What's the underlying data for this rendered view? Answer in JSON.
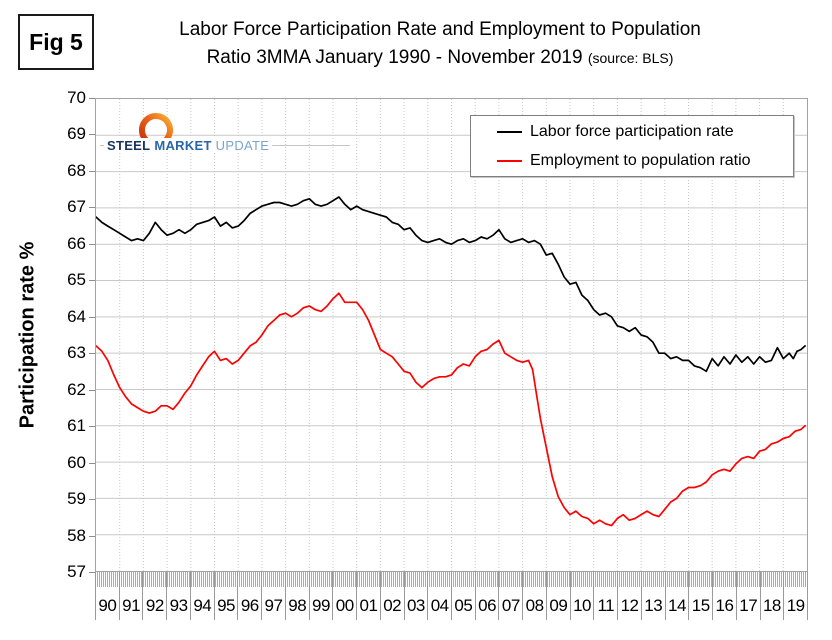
{
  "figure": {
    "label": "Fig 5"
  },
  "title": {
    "line1": "Labor Force Participation Rate and Employment to Population",
    "line2": "Ratio 3MMA January 1990 - November 2019",
    "source_note": "(source: BLS)"
  },
  "logo": {
    "word1": "STEEL",
    "word2": "MARKET",
    "word3": "UPDATE"
  },
  "colors": {
    "lfpr_line": "#000000",
    "epr_line": "#FF0000",
    "gridline": "#c9c9c9",
    "plot_border": "#a3a3a3",
    "axis_tick": "#9a9a9a",
    "logo_navy": "#16365f",
    "logo_blue": "#2a66a8",
    "logo_light_blue": "#7aa3d4",
    "logo_orange_dark": "#d94a0a",
    "logo_orange_light": "#f9b233"
  },
  "chart_data": {
    "type": "line",
    "title": "Labor Force Participation Rate and Employment to Population Ratio 3MMA January 1990 - November 2019",
    "source": "BLS",
    "xlabel": "",
    "ylabel": "Participation rate %",
    "ylim": [
      57,
      70
    ],
    "x_domain_years": [
      1990,
      2020
    ],
    "x_end_data": 2019.92,
    "y_ticks": [
      70,
      69,
      68,
      67,
      66,
      65,
      64,
      63,
      62,
      61,
      60,
      59,
      58,
      57
    ],
    "x_tick_labels": [
      "90",
      "91",
      "92",
      "93",
      "94",
      "95",
      "96",
      "97",
      "98",
      "99",
      "00",
      "01",
      "02",
      "03",
      "04",
      "05",
      "06",
      "07",
      "08",
      "09",
      "10",
      "11",
      "12",
      "13",
      "14",
      "15",
      "16",
      "17",
      "18",
      "19"
    ],
    "grid": {
      "horizontal": "solid",
      "vertical": "dotted-yearly",
      "monthly_tick_band": true
    },
    "legend_position": "top-right",
    "series": [
      {
        "name": "Labor force participation rate",
        "color": "#000000",
        "points": [
          [
            1990,
            66.75
          ],
          [
            1990.25,
            66.6
          ],
          [
            1990.5,
            66.5
          ],
          [
            1990.75,
            66.4
          ],
          [
            1991,
            66.3
          ],
          [
            1991.25,
            66.2
          ],
          [
            1991.5,
            66.1
          ],
          [
            1991.75,
            66.15
          ],
          [
            1992,
            66.1
          ],
          [
            1992.25,
            66.3
          ],
          [
            1992.5,
            66.6
          ],
          [
            1992.75,
            66.4
          ],
          [
            1993,
            66.25
          ],
          [
            1993.25,
            66.3
          ],
          [
            1993.5,
            66.4
          ],
          [
            1993.75,
            66.3
          ],
          [
            1994,
            66.4
          ],
          [
            1994.25,
            66.55
          ],
          [
            1994.5,
            66.6
          ],
          [
            1994.75,
            66.65
          ],
          [
            1995,
            66.75
          ],
          [
            1995.25,
            66.5
          ],
          [
            1995.5,
            66.6
          ],
          [
            1995.75,
            66.45
          ],
          [
            1996,
            66.5
          ],
          [
            1996.25,
            66.65
          ],
          [
            1996.5,
            66.85
          ],
          [
            1996.75,
            66.95
          ],
          [
            1997,
            67.05
          ],
          [
            1997.25,
            67.1
          ],
          [
            1997.5,
            67.15
          ],
          [
            1997.75,
            67.15
          ],
          [
            1998,
            67.1
          ],
          [
            1998.25,
            67.05
          ],
          [
            1998.5,
            67.1
          ],
          [
            1998.75,
            67.2
          ],
          [
            1999,
            67.25
          ],
          [
            1999.25,
            67.1
          ],
          [
            1999.5,
            67.05
          ],
          [
            1999.75,
            67.1
          ],
          [
            2000,
            67.2
          ],
          [
            2000.25,
            67.3
          ],
          [
            2000.5,
            67.1
          ],
          [
            2000.75,
            66.95
          ],
          [
            2001,
            67.05
          ],
          [
            2001.25,
            66.95
          ],
          [
            2001.5,
            66.9
          ],
          [
            2001.75,
            66.85
          ],
          [
            2002,
            66.8
          ],
          [
            2002.25,
            66.75
          ],
          [
            2002.5,
            66.6
          ],
          [
            2002.75,
            66.55
          ],
          [
            2003,
            66.4
          ],
          [
            2003.25,
            66.45
          ],
          [
            2003.5,
            66.25
          ],
          [
            2003.75,
            66.1
          ],
          [
            2004,
            66.05
          ],
          [
            2004.25,
            66.1
          ],
          [
            2004.5,
            66.15
          ],
          [
            2004.75,
            66.05
          ],
          [
            2005,
            66
          ],
          [
            2005.25,
            66.1
          ],
          [
            2005.5,
            66.15
          ],
          [
            2005.75,
            66.05
          ],
          [
            2006,
            66.1
          ],
          [
            2006.25,
            66.2
          ],
          [
            2006.5,
            66.15
          ],
          [
            2006.75,
            66.25
          ],
          [
            2007,
            66.4
          ],
          [
            2007.25,
            66.15
          ],
          [
            2007.5,
            66.05
          ],
          [
            2007.75,
            66.1
          ],
          [
            2008,
            66.15
          ],
          [
            2008.25,
            66.05
          ],
          [
            2008.5,
            66.1
          ],
          [
            2008.75,
            66
          ],
          [
            2009,
            65.7
          ],
          [
            2009.25,
            65.75
          ],
          [
            2009.5,
            65.45
          ],
          [
            2009.75,
            65.1
          ],
          [
            2010,
            64.9
          ],
          [
            2010.25,
            64.95
          ],
          [
            2010.5,
            64.6
          ],
          [
            2010.75,
            64.45
          ],
          [
            2011,
            64.2
          ],
          [
            2011.25,
            64.05
          ],
          [
            2011.5,
            64.1
          ],
          [
            2011.75,
            64
          ],
          [
            2012,
            63.75
          ],
          [
            2012.25,
            63.7
          ],
          [
            2012.5,
            63.6
          ],
          [
            2012.75,
            63.7
          ],
          [
            2013,
            63.5
          ],
          [
            2013.25,
            63.45
          ],
          [
            2013.5,
            63.3
          ],
          [
            2013.75,
            63
          ],
          [
            2014,
            63
          ],
          [
            2014.25,
            62.85
          ],
          [
            2014.5,
            62.9
          ],
          [
            2014.75,
            62.8
          ],
          [
            2015,
            62.8
          ],
          [
            2015.25,
            62.65
          ],
          [
            2015.5,
            62.6
          ],
          [
            2015.75,
            62.5
          ],
          [
            2016,
            62.85
          ],
          [
            2016.25,
            62.65
          ],
          [
            2016.5,
            62.9
          ],
          [
            2016.75,
            62.7
          ],
          [
            2017,
            62.95
          ],
          [
            2017.25,
            62.75
          ],
          [
            2017.5,
            62.9
          ],
          [
            2017.75,
            62.7
          ],
          [
            2018,
            62.9
          ],
          [
            2018.25,
            62.75
          ],
          [
            2018.5,
            62.8
          ],
          [
            2018.75,
            63.15
          ],
          [
            2019,
            62.85
          ],
          [
            2019.25,
            63
          ],
          [
            2019.42,
            62.85
          ],
          [
            2019.58,
            63.05
          ],
          [
            2019.75,
            63.1
          ],
          [
            2019.92,
            63.2
          ]
        ]
      },
      {
        "name": "Employment to population ratio",
        "color": "#FF0000",
        "points": [
          [
            1990,
            63.2
          ],
          [
            1990.25,
            63.05
          ],
          [
            1990.5,
            62.8
          ],
          [
            1990.75,
            62.4
          ],
          [
            1991,
            62.05
          ],
          [
            1991.25,
            61.8
          ],
          [
            1991.5,
            61.6
          ],
          [
            1991.75,
            61.5
          ],
          [
            1992,
            61.4
          ],
          [
            1992.25,
            61.35
          ],
          [
            1992.5,
            61.4
          ],
          [
            1992.75,
            61.55
          ],
          [
            1993,
            61.55
          ],
          [
            1993.25,
            61.45
          ],
          [
            1993.5,
            61.65
          ],
          [
            1993.75,
            61.9
          ],
          [
            1994,
            62.1
          ],
          [
            1994.25,
            62.4
          ],
          [
            1994.5,
            62.65
          ],
          [
            1994.75,
            62.9
          ],
          [
            1995,
            63.05
          ],
          [
            1995.25,
            62.8
          ],
          [
            1995.5,
            62.85
          ],
          [
            1995.75,
            62.7
          ],
          [
            1996,
            62.8
          ],
          [
            1996.25,
            63
          ],
          [
            1996.5,
            63.2
          ],
          [
            1996.75,
            63.3
          ],
          [
            1997,
            63.5
          ],
          [
            1997.25,
            63.75
          ],
          [
            1997.5,
            63.9
          ],
          [
            1997.75,
            64.05
          ],
          [
            1998,
            64.1
          ],
          [
            1998.25,
            64
          ],
          [
            1998.5,
            64.1
          ],
          [
            1998.75,
            64.25
          ],
          [
            1999,
            64.3
          ],
          [
            1999.25,
            64.2
          ],
          [
            1999.5,
            64.15
          ],
          [
            1999.75,
            64.3
          ],
          [
            2000,
            64.5
          ],
          [
            2000.25,
            64.65
          ],
          [
            2000.5,
            64.4
          ],
          [
            2000.75,
            64.4
          ],
          [
            2001,
            64.4
          ],
          [
            2001.25,
            64.2
          ],
          [
            2001.5,
            63.9
          ],
          [
            2001.75,
            63.5
          ],
          [
            2002,
            63.1
          ],
          [
            2002.25,
            63
          ],
          [
            2002.5,
            62.9
          ],
          [
            2002.75,
            62.7
          ],
          [
            2003,
            62.5
          ],
          [
            2003.25,
            62.45
          ],
          [
            2003.5,
            62.2
          ],
          [
            2003.75,
            62.05
          ],
          [
            2004,
            62.2
          ],
          [
            2004.25,
            62.3
          ],
          [
            2004.5,
            62.35
          ],
          [
            2004.75,
            62.35
          ],
          [
            2005,
            62.4
          ],
          [
            2005.25,
            62.6
          ],
          [
            2005.5,
            62.7
          ],
          [
            2005.75,
            62.65
          ],
          [
            2006,
            62.9
          ],
          [
            2006.25,
            63.05
          ],
          [
            2006.5,
            63.1
          ],
          [
            2006.75,
            63.25
          ],
          [
            2007,
            63.35
          ],
          [
            2007.25,
            63
          ],
          [
            2007.5,
            62.9
          ],
          [
            2007.75,
            62.8
          ],
          [
            2008,
            62.75
          ],
          [
            2008.25,
            62.8
          ],
          [
            2008.42,
            62.55
          ],
          [
            2008.58,
            61.9
          ],
          [
            2008.75,
            61.2
          ],
          [
            2009,
            60.4
          ],
          [
            2009.25,
            59.6
          ],
          [
            2009.5,
            59.05
          ],
          [
            2009.75,
            58.75
          ],
          [
            2010,
            58.55
          ],
          [
            2010.25,
            58.65
          ],
          [
            2010.5,
            58.5
          ],
          [
            2010.75,
            58.45
          ],
          [
            2011,
            58.3
          ],
          [
            2011.25,
            58.4
          ],
          [
            2011.5,
            58.3
          ],
          [
            2011.75,
            58.25
          ],
          [
            2012,
            58.45
          ],
          [
            2012.25,
            58.55
          ],
          [
            2012.5,
            58.4
          ],
          [
            2012.75,
            58.45
          ],
          [
            2013,
            58.55
          ],
          [
            2013.25,
            58.65
          ],
          [
            2013.5,
            58.55
          ],
          [
            2013.75,
            58.5
          ],
          [
            2014,
            58.7
          ],
          [
            2014.25,
            58.9
          ],
          [
            2014.5,
            59
          ],
          [
            2014.75,
            59.2
          ],
          [
            2015,
            59.3
          ],
          [
            2015.25,
            59.3
          ],
          [
            2015.5,
            59.35
          ],
          [
            2015.75,
            59.45
          ],
          [
            2016,
            59.65
          ],
          [
            2016.25,
            59.75
          ],
          [
            2016.5,
            59.8
          ],
          [
            2016.75,
            59.75
          ],
          [
            2017,
            59.95
          ],
          [
            2017.25,
            60.1
          ],
          [
            2017.5,
            60.15
          ],
          [
            2017.75,
            60.1
          ],
          [
            2018,
            60.3
          ],
          [
            2018.25,
            60.35
          ],
          [
            2018.5,
            60.5
          ],
          [
            2018.75,
            60.55
          ],
          [
            2019,
            60.65
          ],
          [
            2019.25,
            60.7
          ],
          [
            2019.5,
            60.85
          ],
          [
            2019.75,
            60.9
          ],
          [
            2019.92,
            61
          ]
        ]
      }
    ]
  }
}
